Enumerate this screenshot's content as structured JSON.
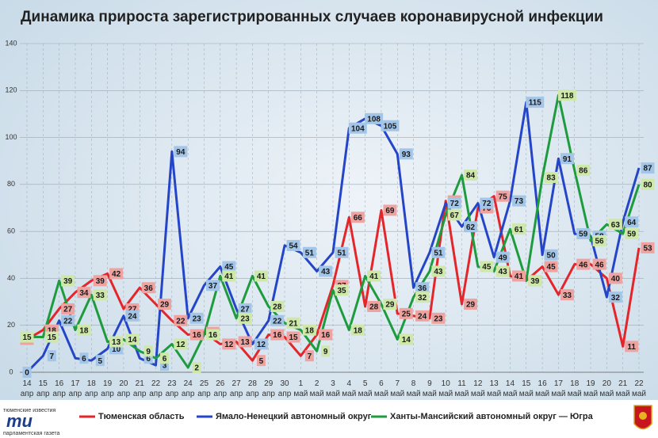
{
  "chart_data": {
    "type": "line",
    "title": "Динамика прироста зарегистрированных случаев коронавирусной инфекции",
    "categories": [
      "14 апр",
      "15 апр",
      "16 апр",
      "17 апр",
      "18 апр",
      "19 апр",
      "20 апр",
      "21 апр",
      "22 апр",
      "23 апр",
      "24 апр",
      "25 апр",
      "26 апр",
      "27 апр",
      "28 апр",
      "29 апр",
      "30 апр",
      "1 май",
      "2 май",
      "3 май",
      "4 май",
      "5 май",
      "6 май",
      "7 май",
      "8 май",
      "9 май",
      "10 май",
      "11 май",
      "12 май",
      "13 май",
      "14 май",
      "15 май",
      "16 май",
      "17 май",
      "18 май",
      "19 май",
      "20 май",
      "21 май",
      "22 май"
    ],
    "series": [
      {
        "name": "Тюменская область",
        "color": "#e4262b",
        "label_color": "#eea3a0",
        "values": [
          14,
          18,
          27,
          34,
          39,
          42,
          27,
          36,
          29,
          22,
          16,
          17,
          12,
          13,
          5,
          16,
          15,
          7,
          16,
          37,
          66,
          28,
          69,
          25,
          24,
          23,
          73,
          29,
          70,
          75,
          41,
          39,
          45,
          33,
          46,
          46,
          40,
          11,
          53
        ]
      },
      {
        "name": "Ямало-Ненецкий автономный округ",
        "color": "#2545c9",
        "label_color": "#a3c6e8",
        "values": [
          0,
          7,
          22,
          6,
          5,
          10,
          24,
          6,
          3,
          94,
          23,
          37,
          45,
          27,
          12,
          22,
          54,
          51,
          43,
          51,
          104,
          108,
          105,
          93,
          36,
          51,
          72,
          62,
          72,
          49,
          73,
          115,
          50,
          91,
          59,
          58,
          32,
          64,
          87
        ]
      },
      {
        "name": "Ханты-Мансийский автономный округ — Югра",
        "color": "#1d9b3d",
        "label_color": "#cde8a8",
        "values": [
          15,
          15,
          39,
          18,
          33,
          13,
          14,
          9,
          6,
          12,
          2,
          16,
          41,
          23,
          41,
          28,
          21,
          18,
          9,
          35,
          18,
          41,
          29,
          14,
          32,
          43,
          67,
          84,
          45,
          43,
          61,
          39,
          83,
          118,
          86,
          56,
          63,
          59,
          80
        ]
      }
    ],
    "ylim": [
      0,
      140
    ],
    "yticks": [
      0,
      20,
      40,
      60,
      80,
      100,
      120,
      140
    ],
    "grid": true,
    "legend": "bottom"
  },
  "branding": [
    "тюменские известия",
    "mu",
    "парламентская газета"
  ]
}
